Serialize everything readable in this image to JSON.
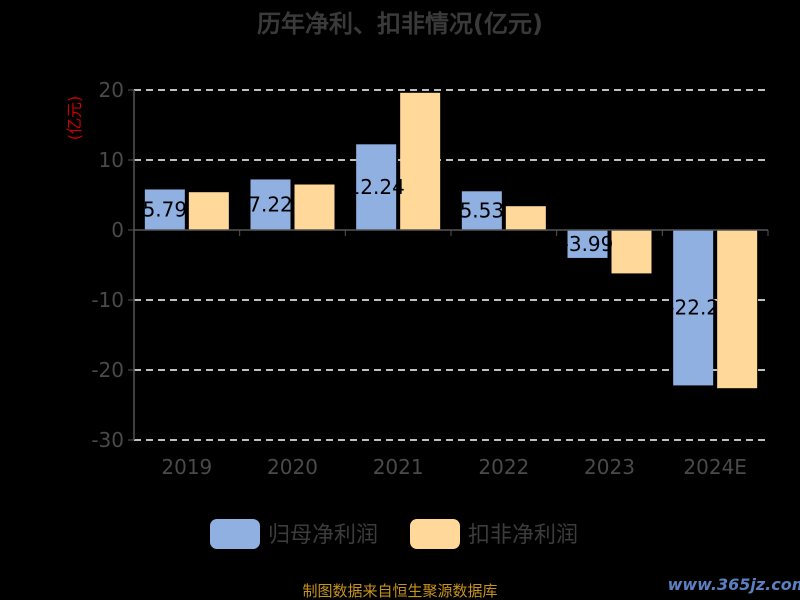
{
  "chart_data": {
    "type": "bar",
    "title": "历年净利、扣非情况(亿元)",
    "ylabel": "(亿元)",
    "xlabel": "",
    "categories": [
      "2019",
      "2020",
      "2021",
      "2022",
      "2023",
      "2024E"
    ],
    "ylim": [
      -30,
      20
    ],
    "yticks": [
      20,
      10,
      0,
      -10,
      -20,
      -30
    ],
    "grid": true,
    "legend_position": "bottom",
    "series": [
      {
        "name": "归母净利润",
        "color": "#8fb0e0",
        "values": [
          5.79,
          7.22,
          12.24,
          5.53,
          -3.99,
          -22.2
        ],
        "labels": [
          "5.79",
          "7.22",
          "12.24",
          "5.53",
          "-3.99",
          "-22.2"
        ]
      },
      {
        "name": "扣非净利润",
        "color": "#ffd89a",
        "values": [
          5.4,
          6.5,
          19.6,
          3.4,
          -6.2,
          -22.6
        ]
      }
    ]
  },
  "footer": {
    "source": "制图数据来自恒生聚源数据库",
    "watermark": "www.365jz.com"
  }
}
